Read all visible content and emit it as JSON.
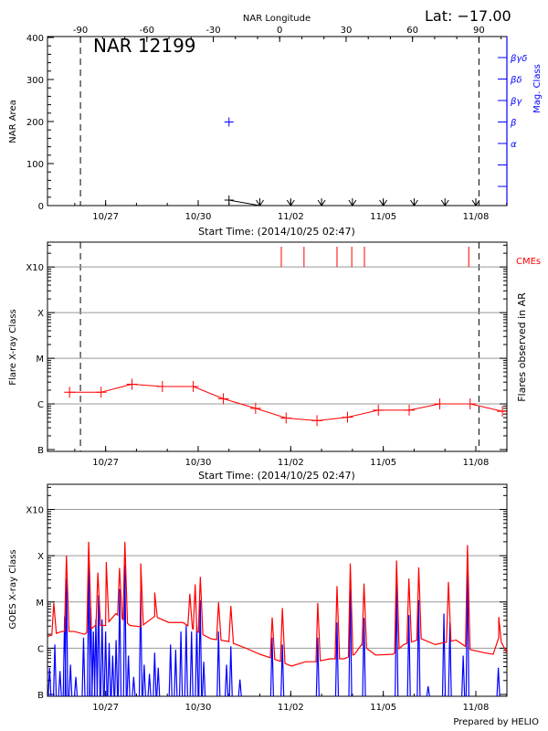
{
  "header": {
    "lat_label": "Lat: −17.00",
    "footer": "Prepared by HELIO"
  },
  "chart_data": [
    {
      "type": "line",
      "title": "NAR 12199",
      "xlabel": "Start Time: (2014/10/25 02:47)",
      "ylabel": "NAR Area",
      "y2label": "Mag. Class",
      "xlim": [
        "10/25 02:47",
        "11/09 00:10"
      ],
      "xticks": [
        {
          "t": "10/27 00:00",
          "label": "10/27"
        },
        {
          "t": "10/30 00:00",
          "label": "10/30"
        },
        {
          "t": "11/02 00:00",
          "label": "11/02"
        },
        {
          "t": "11/05 00:00",
          "label": "11/05"
        },
        {
          "t": "11/08 00:00",
          "label": "11/08"
        }
      ],
      "ylim": [
        0,
        400
      ],
      "yticks": [
        "0",
        "100",
        "200",
        "300",
        "400"
      ],
      "top_axis": {
        "label": "NAR Longitude",
        "ticks": [
          "-90",
          "-60",
          "-30",
          "0",
          "30",
          "60",
          "90"
        ],
        "limb_east": "10/26 04:25",
        "limb_west": "11/08 02:25"
      },
      "area": [
        {
          "t": "10/31 00:00",
          "v": 13
        },
        {
          "t": "11/01 00:00",
          "v": 0
        },
        {
          "t": "11/02 00:00",
          "v": 0
        },
        {
          "t": "11/03 00:00",
          "v": 0
        },
        {
          "t": "11/04 00:00",
          "v": 0
        },
        {
          "t": "11/05 00:00",
          "v": 0
        },
        {
          "t": "11/06 00:00",
          "v": 0
        },
        {
          "t": "11/07 00:00",
          "v": 0
        },
        {
          "t": "11/08 00:00",
          "v": 0
        }
      ],
      "mag_class_levels": [
        "α",
        "β",
        "βγ",
        "βδ",
        "βγδ"
      ],
      "mag_class_points": [
        {
          "t": "10/31 00:00",
          "class": "β"
        }
      ],
      "colors": {
        "area": "#000000",
        "mag_class": "#0000ff",
        "limb": "#000000"
      }
    },
    {
      "type": "line",
      "xlabel": "Start Time: (2014/10/25 02:47)",
      "ylabel": "Flare X-ray Class",
      "y2label": "Flares observed in AR",
      "scale": "log",
      "ylim": [
        1e-07,
        0.0035
      ],
      "yticks": [
        {
          "v": 1e-07,
          "label": "B"
        },
        {
          "v": 1e-06,
          "label": "C"
        },
        {
          "v": 1e-05,
          "label": "M"
        },
        {
          "v": 0.0001,
          "label": "X"
        },
        {
          "v": 0.001,
          "label": "X10"
        }
      ],
      "grid": true,
      "series": [
        {
          "points": [
            {
              "t": "10/25 19:55",
              "c": "C1.8"
            },
            {
              "t": "10/26 20:30",
              "c": "C1.8"
            },
            {
              "t": "10/27 20:30",
              "c": "C2.7"
            },
            {
              "t": "10/28 20:10",
              "c": "C2.4"
            },
            {
              "t": "10/29 20:10",
              "c": "C2.4"
            },
            {
              "t": "10/30 19:35",
              "c": "C1.3"
            },
            {
              "t": "10/31 20:40",
              "c": "B8.0"
            },
            {
              "t": "11/01 20:25",
              "c": "B4.9"
            },
            {
              "t": "11/02 20:25",
              "c": "B4.3"
            },
            {
              "t": "11/03 20:10",
              "c": "B5.1"
            },
            {
              "t": "11/04 20:10",
              "c": "B7.3"
            },
            {
              "t": "11/05 20:10",
              "c": "B7.3"
            },
            {
              "t": "11/06 19:55",
              "c": "C1.0"
            },
            {
              "t": "11/07 19:35",
              "c": "C1.0"
            },
            {
              "t": "11/08 20:40",
              "c": "B6.9"
            }
          ]
        }
      ],
      "cmes": {
        "label": "CMEs",
        "times": [
          "11/01 16:40",
          "11/02 10:20",
          "11/03 12:00",
          "11/03 23:30",
          "11/04 09:20",
          "11/07 18:30"
        ]
      },
      "colors": {
        "series": "#ff0000",
        "cme": "#ff0000",
        "grid": "#999999"
      }
    },
    {
      "type": "line",
      "ylabel": "GOES X-ray Class",
      "scale": "log",
      "ylim": [
        1e-07,
        0.0035
      ],
      "yticks": [
        {
          "v": 1e-07,
          "label": "B"
        },
        {
          "v": 1e-06,
          "label": "C"
        },
        {
          "v": 1e-05,
          "label": "M"
        },
        {
          "v": 0.0001,
          "label": "X"
        },
        {
          "v": 0.001,
          "label": "X10"
        }
      ],
      "grid": true,
      "long_channel": {
        "color": "#ff0000",
        "background": [
          {
            "t": "10/25 03:00",
            "c": "C1.8"
          },
          {
            "t": "10/25 14:00",
            "c": "C2.3"
          },
          {
            "t": "10/25 23:30",
            "c": "C2.3"
          },
          {
            "t": "10/26 07:40",
            "c": "C2.0"
          },
          {
            "t": "10/26 16:00",
            "c": "C3.1"
          },
          {
            "t": "10/27 00:00",
            "c": "C3.1"
          },
          {
            "t": "10/27 08:00",
            "c": "C5.6"
          },
          {
            "t": "10/27 19:00",
            "c": "C3.1"
          },
          {
            "t": "10/28 03:20",
            "c": "C2.9"
          },
          {
            "t": "10/28 14:10",
            "c": "C4.9"
          },
          {
            "t": "10/29 01:10",
            "c": "C3.6"
          },
          {
            "t": "10/29 12:00",
            "c": "C3.6"
          },
          {
            "t": "10/29 23:00",
            "c": "C2.3"
          },
          {
            "t": "10/30 09:50",
            "c": "C1.6"
          },
          {
            "t": "10/30 23:30",
            "c": "C1.4"
          },
          {
            "t": "10/31 13:10",
            "c": "C1.0"
          },
          {
            "t": "11/01 00:00",
            "c": "B7.4"
          },
          {
            "t": "11/01 13:40",
            "c": "B5.5"
          },
          {
            "t": "11/02 00:30",
            "c": "B4.1"
          },
          {
            "t": "11/02 11:30",
            "c": "B5.1"
          },
          {
            "t": "11/02 19:40",
            "c": "B5.1"
          },
          {
            "t": "11/03 06:30",
            "c": "B5.9"
          },
          {
            "t": "11/03 17:30",
            "c": "B5.9"
          },
          {
            "t": "11/04 01:40",
            "c": "B7.4"
          },
          {
            "t": "11/04 07:10",
            "c": "C1.2"
          },
          {
            "t": "11/04 18:00",
            "c": "B7.1"
          },
          {
            "t": "11/05 07:40",
            "c": "B7.4"
          },
          {
            "t": "11/05 15:50",
            "c": "C1.2"
          },
          {
            "t": "11/06 05:30",
            "c": "C1.6"
          },
          {
            "t": "11/06 16:20",
            "c": "C1.2"
          },
          {
            "t": "11/07 08:40",
            "c": "C1.5"
          },
          {
            "t": "11/07 19:40",
            "c": "B9.3"
          },
          {
            "t": "11/08 06:30",
            "c": "B8.0"
          },
          {
            "t": "11/08 13:30",
            "c": "B7.4"
          },
          {
            "t": "11/08 17:50",
            "c": "C1.7"
          },
          {
            "t": "11/09 00:10",
            "c": "B8.0"
          }
        ],
        "peaks": [
          {
            "t": "10/25 07:40",
            "c": "C9.5"
          },
          {
            "t": "10/25 17:30",
            "c": "X1.0"
          },
          {
            "t": "10/26 10:50",
            "c": "X2.0"
          },
          {
            "t": "10/26 18:00",
            "c": "M4.3"
          },
          {
            "t": "10/27 00:30",
            "c": "M7.3"
          },
          {
            "t": "10/27 10:50",
            "c": "M5.4"
          },
          {
            "t": "10/27 15:00",
            "c": "X2.0"
          },
          {
            "t": "10/28 03:20",
            "c": "M6.8"
          },
          {
            "t": "10/28 14:10",
            "c": "M1.6"
          },
          {
            "t": "10/29 17:30",
            "c": "M1.5"
          },
          {
            "t": "10/29 21:40",
            "c": "M2.4"
          },
          {
            "t": "10/30 01:40",
            "c": "M3.5"
          },
          {
            "t": "10/30 15:50",
            "c": "C9.8"
          },
          {
            "t": "10/31 01:25",
            "c": "C8.2"
          },
          {
            "t": "11/01 09:35",
            "c": "C4.6"
          },
          {
            "t": "11/01 17:30",
            "c": "C7.4"
          },
          {
            "t": "11/02 21:00",
            "c": "C9.5"
          },
          {
            "t": "11/03 12:00",
            "c": "M2.2"
          },
          {
            "t": "11/03 22:20",
            "c": "M6.8"
          },
          {
            "t": "11/04 09:00",
            "c": "M2.5"
          },
          {
            "t": "11/05 10:20",
            "c": "M7.9"
          },
          {
            "t": "11/05 19:55",
            "c": "M3.2"
          },
          {
            "t": "11/06 03:35",
            "c": "M5.6"
          },
          {
            "t": "11/07 02:40",
            "c": "M2.7"
          },
          {
            "t": "11/07 17:30",
            "c": "X1.7"
          },
          {
            "t": "11/08 17:50",
            "c": "C4.7"
          }
        ]
      },
      "short_channel": {
        "color": "#0000ff",
        "peaks": [
          {
            "t": "10/25 04:25",
            "c": "B3.8"
          },
          {
            "t": "10/25 08:30",
            "c": "C1.2"
          },
          {
            "t": "10/25 12:30",
            "c": "B3.2"
          },
          {
            "t": "10/25 16:05",
            "c": "C4.9"
          },
          {
            "t": "10/25 17:30",
            "c": "M3.2"
          },
          {
            "t": "10/25 20:40",
            "c": "B4.4"
          },
          {
            "t": "10/26 00:50",
            "c": "B2.4"
          },
          {
            "t": "10/26 06:50",
            "c": "C1.7"
          },
          {
            "t": "10/26 10:55",
            "c": "M7.3"
          },
          {
            "t": "10/26 12:30",
            "c": "C7.6"
          },
          {
            "t": "10/26 14:30",
            "c": "C2.3"
          },
          {
            "t": "10/26 16:25",
            "c": "C4.2"
          },
          {
            "t": "10/26 18:30",
            "c": "M1.4"
          },
          {
            "t": "10/26 21:15",
            "c": "C4.2"
          },
          {
            "t": "10/27 00:00",
            "c": "C2.3"
          },
          {
            "t": "10/27 02:45",
            "c": "C1.3"
          },
          {
            "t": "10/27 05:30",
            "c": "B6.9"
          },
          {
            "t": "10/27 08:10",
            "c": "C1.5"
          },
          {
            "t": "10/27 10:55",
            "c": "M1.9"
          },
          {
            "t": "10/27 15:00",
            "c": "M6.3"
          },
          {
            "t": "10/27 17:45",
            "c": "B6.9"
          },
          {
            "t": "10/27 21:50",
            "c": "B2.4"
          },
          {
            "t": "10/28 03:15",
            "c": "M1.7"
          },
          {
            "t": "10/28 06:00",
            "c": "B4.4"
          },
          {
            "t": "10/28 10:05",
            "c": "B2.8"
          },
          {
            "t": "10/28 14:10",
            "c": "B8.0"
          },
          {
            "t": "10/28 16:55",
            "c": "B3.8"
          },
          {
            "t": "10/29 02:30",
            "c": "C1.2"
          },
          {
            "t": "10/29 06:30",
            "c": "B9.3"
          },
          {
            "t": "10/29 10:35",
            "c": "C2.3"
          },
          {
            "t": "10/29 14:40",
            "c": "C3.1"
          },
          {
            "t": "10/29 18:50",
            "c": "C2.3"
          },
          {
            "t": "10/29 22:55",
            "c": "C3.1"
          },
          {
            "t": "10/30 01:35",
            "c": "M1.1"
          },
          {
            "t": "10/30 04:20",
            "c": "B5.1"
          },
          {
            "t": "10/30 15:50",
            "c": "C2.3"
          },
          {
            "t": "10/30 22:05",
            "c": "B4.4"
          },
          {
            "t": "10/31 01:25",
            "c": "C1.1"
          },
          {
            "t": "10/31 08:30",
            "c": "B2.1"
          },
          {
            "t": "11/01 09:30",
            "c": "C1.7"
          },
          {
            "t": "11/01 17:30",
            "c": "C1.2"
          },
          {
            "t": "11/02 21:00",
            "c": "C1.7"
          },
          {
            "t": "11/03 12:00",
            "c": "C3.6"
          },
          {
            "t": "11/03 22:20",
            "c": "M1.9"
          },
          {
            "t": "11/04 09:00",
            "c": "C4.5"
          },
          {
            "t": "11/05 10:20",
            "c": "M2.5"
          },
          {
            "t": "11/05 19:55",
            "c": "C5.2"
          },
          {
            "t": "11/06 03:30",
            "c": "M1.1"
          },
          {
            "t": "11/06 10:55",
            "c": "B1.5"
          },
          {
            "t": "11/06 23:10",
            "c": "C5.6"
          },
          {
            "t": "11/07 03:50",
            "c": "C3.6"
          },
          {
            "t": "11/07 14:10",
            "c": "B6.9"
          },
          {
            "t": "11/07 17:30",
            "c": "M4.3"
          },
          {
            "t": "11/08 17:30",
            "c": "B3.8"
          }
        ]
      },
      "colors": {
        "grid": "#999999"
      }
    }
  ]
}
